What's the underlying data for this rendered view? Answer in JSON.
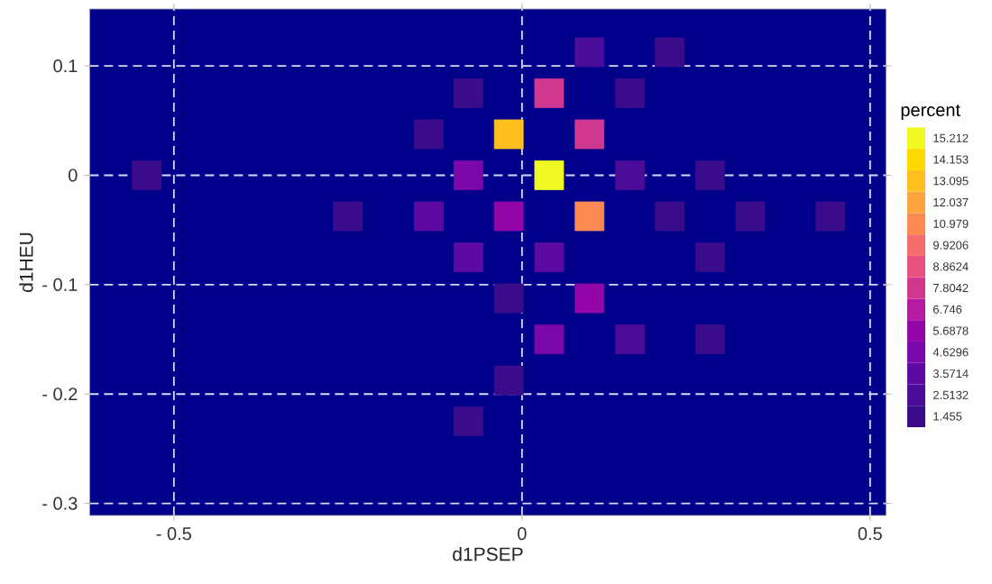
{
  "chart_data": {
    "type": "scatter",
    "xlabel": "d1PSEP",
    "ylabel": "d1HEU",
    "clabel": "percent",
    "x": [
      0.097,
      0.212,
      -0.077,
      0.039,
      0.155,
      -0.134,
      -0.019,
      0.097,
      -0.539,
      -0.077,
      0.039,
      0.155,
      0.27,
      -0.25,
      -0.134,
      -0.019,
      0.097,
      0.212,
      0.328,
      0.443,
      -0.077,
      0.039,
      0.27,
      -0.019,
      0.097,
      0.039,
      0.155,
      0.27,
      -0.019,
      -0.077
    ],
    "values": [
      0.1125,
      0.1125,
      0.075,
      0.075,
      0.075,
      0.0375,
      0.0375,
      0.0375,
      0,
      0,
      0,
      0,
      0,
      -0.0375,
      -0.0375,
      -0.0375,
      -0.0375,
      -0.0375,
      -0.0375,
      -0.0375,
      -0.075,
      -0.075,
      -0.075,
      -0.1125,
      -0.1125,
      -0.15,
      -0.15,
      -0.15,
      -0.1875,
      -0.225
    ],
    "cvalues": [
      2.5132,
      1.455,
      1.455,
      7.8042,
      1.455,
      1.455,
      13.095,
      7.8042,
      1.455,
      4.6296,
      15.212,
      2.5132,
      1.455,
      1.455,
      3.5714,
      5.6878,
      10.979,
      1.455,
      1.455,
      1.455,
      3.5714,
      3.5714,
      1.455,
      1.455,
      5.6878,
      4.6296,
      2.5132,
      1.455,
      1.455,
      1.455
    ],
    "clim": [
      0.926,
      15.741
    ],
    "cticks": [
      1.455,
      2.5132,
      3.5714,
      4.6296,
      5.6878,
      6.746,
      7.8042,
      8.8624,
      9.9206,
      10.979,
      12.037,
      13.095,
      14.153,
      15.212
    ],
    "xlim": [
      -0.621,
      0.523
    ],
    "ylim": [
      -0.311,
      0.152
    ],
    "xticks": [
      {
        "value": -0.5,
        "label": "- 0.5"
      },
      0,
      0.5
    ],
    "yticks": [
      {
        "value": -0.3,
        "label": "- 0.3"
      },
      {
        "value": -0.2,
        "label": "- 0.2"
      },
      {
        "value": -0.1,
        "label": "- 0.1"
      },
      0,
      0.1
    ],
    "grid": true
  }
}
